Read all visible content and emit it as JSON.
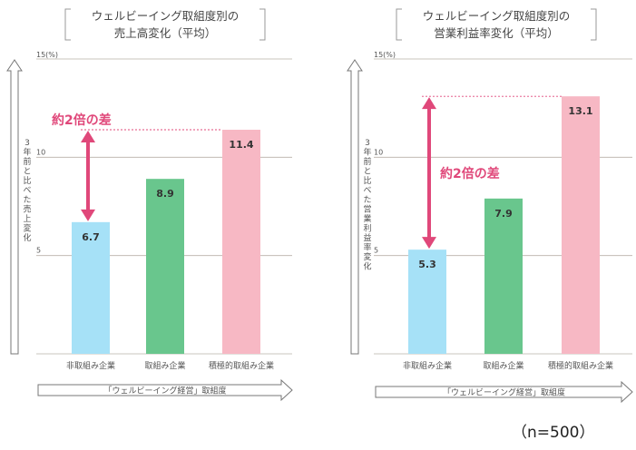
{
  "chart_data": [
    {
      "type": "bar",
      "title_line1": "ウェルビーイング取組度別の",
      "title_line2": "売上高変化（平均）",
      "ylabel": "3年前と比べた売上変化",
      "y_unit": "15(%)",
      "ylim": [
        0,
        15
      ],
      "yticks": [
        5,
        10
      ],
      "categories": [
        "非取組み企業",
        "取組み企業",
        "積極的取組み企業"
      ],
      "values": [
        6.7,
        8.9,
        11.4
      ],
      "value_labels": [
        "6.7",
        "8.9",
        "11.4"
      ],
      "bar_colors": [
        "#a6e1f7",
        "#69c68d",
        "#f7b8c4"
      ],
      "xlabel": "「ウェルビーイング経営」取組度",
      "annotation": "約2倍の差",
      "annotation_from_index": 0,
      "annotation_to_index": 2
    },
    {
      "type": "bar",
      "title_line1": "ウェルビーイング取組度別の",
      "title_line2": "営業利益率変化（平均）",
      "ylabel": "3年前と比べた営業利益率変化",
      "y_unit": "15(%)",
      "ylim": [
        0,
        15
      ],
      "yticks": [
        5,
        10
      ],
      "categories": [
        "非取組み企業",
        "取組み企業",
        "積極的取組み企業"
      ],
      "values": [
        5.3,
        7.9,
        13.1
      ],
      "value_labels": [
        "5.3",
        "7.9",
        "13.1"
      ],
      "bar_colors": [
        "#a6e1f7",
        "#69c68d",
        "#f7b8c4"
      ],
      "xlabel": "「ウェルビーイング経営」取組度",
      "annotation": "約2倍の差",
      "annotation_from_index": 0,
      "annotation_to_index": 2
    }
  ],
  "footnote": "（n=500）",
  "colors": {
    "accent": "#e0487a",
    "grid": "#b9b0a8",
    "text": "#555555"
  }
}
